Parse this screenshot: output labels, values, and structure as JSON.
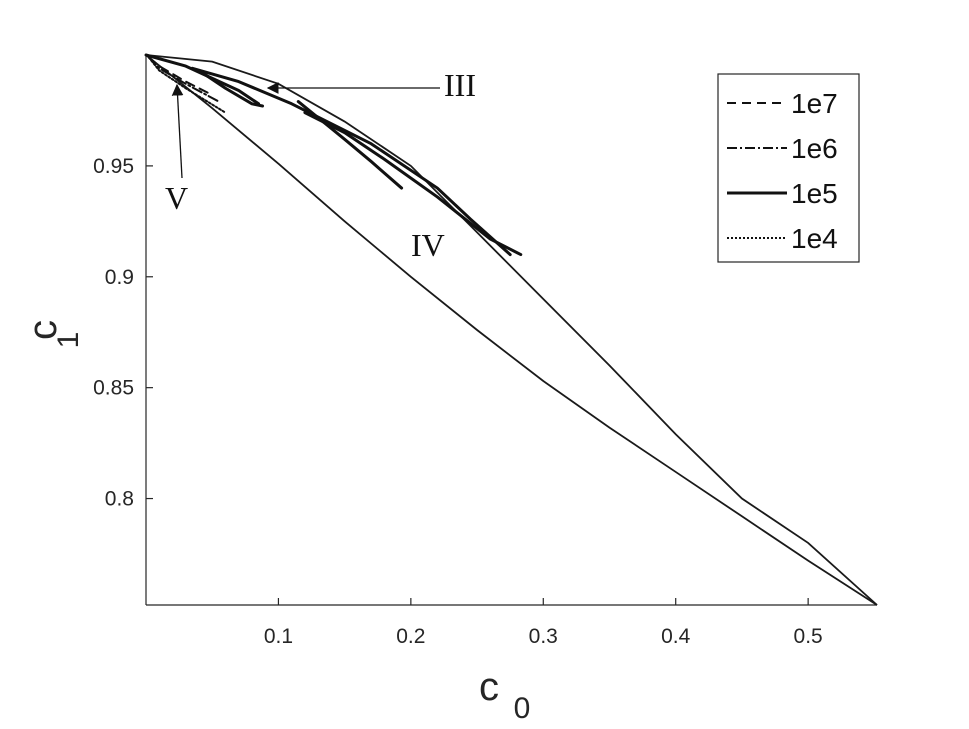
{
  "chart_data": {
    "type": "line",
    "title": "",
    "xlabel": "c",
    "xlabel_sub": "0",
    "ylabel": "c",
    "ylabel_sub": "1",
    "xlim": [
      0,
      0.552
    ],
    "ylim": [
      0.752,
      1.0
    ],
    "xticks": [
      {
        "value": 0.1,
        "label": "0.1"
      },
      {
        "value": 0.2,
        "label": "0.2"
      },
      {
        "value": 0.3,
        "label": "0.3"
      },
      {
        "value": 0.4,
        "label": "0.4"
      },
      {
        "value": 0.5,
        "label": "0.5"
      }
    ],
    "yticks": [
      {
        "value": 0.8,
        "label": "0.8"
      },
      {
        "value": 0.85,
        "label": "0.85"
      },
      {
        "value": 0.9,
        "label": "0.9"
      },
      {
        "value": 0.95,
        "label": "0.95"
      }
    ],
    "grid": false,
    "legend_position": "top-right",
    "legend": [
      {
        "label": "1e7",
        "style": "dashed"
      },
      {
        "label": "1e6",
        "style": "dashdot"
      },
      {
        "label": "1e5",
        "style": "solid"
      },
      {
        "label": "1e4",
        "style": "dotted"
      }
    ],
    "boundaries": [
      {
        "id": "upper",
        "points": [
          [
            0,
            1.0
          ],
          [
            0.05,
            0.997
          ],
          [
            0.1,
            0.987
          ],
          [
            0.15,
            0.97
          ],
          [
            0.2,
            0.95
          ],
          [
            0.25,
            0.92
          ],
          [
            0.3,
            0.89
          ],
          [
            0.35,
            0.86
          ],
          [
            0.4,
            0.829
          ],
          [
            0.45,
            0.8
          ],
          [
            0.5,
            0.78
          ],
          [
            0.552,
            0.752
          ]
        ]
      },
      {
        "id": "lower",
        "points": [
          [
            0,
            1.0
          ],
          [
            0.05,
            0.976
          ],
          [
            0.1,
            0.951
          ],
          [
            0.15,
            0.925
          ],
          [
            0.2,
            0.9
          ],
          [
            0.25,
            0.876
          ],
          [
            0.3,
            0.853
          ],
          [
            0.35,
            0.832
          ],
          [
            0.4,
            0.812
          ],
          [
            0.45,
            0.792
          ],
          [
            0.5,
            0.772
          ],
          [
            0.552,
            0.752
          ]
        ]
      }
    ],
    "series": [
      {
        "style": "dashed",
        "points": [
          [
            0.002,
            0.999
          ],
          [
            0.01,
            0.995
          ],
          [
            0.03,
            0.988
          ],
          [
            0.05,
            0.982
          ]
        ]
      },
      {
        "style": "dashdot",
        "points": [
          [
            0.002,
            0.999
          ],
          [
            0.01,
            0.994
          ],
          [
            0.03,
            0.987
          ],
          [
            0.055,
            0.979
          ]
        ]
      },
      {
        "style": "solid",
        "points": [
          [
            0,
            1.0
          ],
          [
            0.03,
            0.995
          ],
          [
            0.07,
            0.984
          ],
          [
            0.085,
            0.978
          ]
        ]
      },
      {
        "style": "solid",
        "points": [
          [
            0.035,
            0.994
          ],
          [
            0.07,
            0.988
          ],
          [
            0.11,
            0.978
          ],
          [
            0.17,
            0.96
          ],
          [
            0.22,
            0.94
          ],
          [
            0.245,
            0.926
          ],
          [
            0.275,
            0.91
          ]
        ]
      },
      {
        "style": "solid",
        "points": [
          [
            0.115,
            0.979
          ],
          [
            0.15,
            0.962
          ],
          [
            0.17,
            0.952
          ],
          [
            0.193,
            0.94
          ]
        ]
      },
      {
        "style": "solid",
        "points": [
          [
            0.12,
            0.974
          ],
          [
            0.15,
            0.965
          ],
          [
            0.18,
            0.953
          ],
          [
            0.22,
            0.936
          ],
          [
            0.26,
            0.917
          ],
          [
            0.283,
            0.91
          ]
        ]
      },
      {
        "style": "solid",
        "points": [
          [
            0.04,
            0.993
          ],
          [
            0.06,
            0.985
          ],
          [
            0.08,
            0.978
          ],
          [
            0.088,
            0.977
          ]
        ]
      },
      {
        "style": "dotted",
        "points": [
          [
            0.002,
            0.999
          ],
          [
            0.01,
            0.993
          ],
          [
            0.03,
            0.985
          ],
          [
            0.06,
            0.974
          ]
        ]
      }
    ],
    "annotations": [
      {
        "text": "III",
        "point": [
          0.1,
          0.985
        ],
        "arrow_to": [
          0.09,
          0.984
        ]
      },
      {
        "text": "V",
        "point": [
          0.025,
          0.955
        ],
        "arrow_to": [
          0.02,
          0.985
        ]
      },
      {
        "text": "IV",
        "point": [
          0.215,
          0.91
        ],
        "arrow_to": null
      }
    ]
  }
}
